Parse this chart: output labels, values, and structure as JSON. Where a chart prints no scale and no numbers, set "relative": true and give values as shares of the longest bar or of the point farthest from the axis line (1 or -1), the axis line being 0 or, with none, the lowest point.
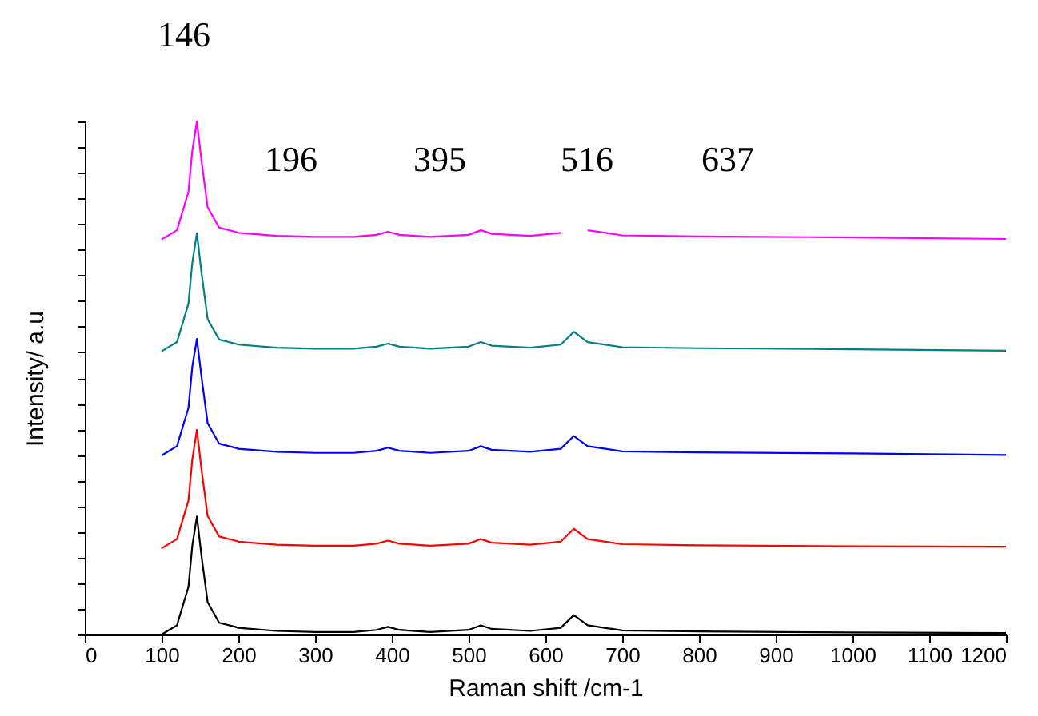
{
  "chart_data": {
    "type": "line",
    "relative": true,
    "xlabel": "Raman shift /cm-1",
    "ylabel": "Intensity/ a.u",
    "xlim": [
      0,
      1200
    ],
    "xticks": [
      0,
      100,
      200,
      300,
      400,
      500,
      600,
      700,
      800,
      900,
      1000,
      1100,
      1200
    ],
    "grid": false,
    "marker": "none",
    "line_style": "solid",
    "annotations": [
      "146",
      "196",
      "395",
      "516",
      "637"
    ],
    "x": [
      100,
      120,
      135,
      140,
      146,
      152,
      160,
      175,
      196,
      200,
      250,
      300,
      350,
      380,
      395,
      410,
      450,
      500,
      516,
      530,
      580,
      620,
      637,
      655,
      700,
      800,
      1000,
      1200
    ],
    "series": [
      {
        "color": "#000000",
        "values": [
          0.0,
          0.018,
          0.093,
          0.173,
          0.23,
          0.153,
          0.063,
          0.023,
          0.015,
          0.013,
          0.007,
          0.005,
          0.005,
          0.009,
          0.015,
          0.009,
          0.005,
          0.009,
          0.018,
          0.011,
          0.007,
          0.013,
          0.038,
          0.018,
          0.008,
          0.006,
          0.004,
          0.003
        ]
      },
      {
        "color": "#ff0000",
        "values": [
          0.168,
          0.186,
          0.261,
          0.341,
          0.399,
          0.321,
          0.231,
          0.191,
          0.183,
          0.181,
          0.175,
          0.173,
          0.173,
          0.177,
          0.183,
          0.177,
          0.173,
          0.177,
          0.186,
          0.179,
          0.175,
          0.181,
          0.206,
          0.186,
          0.176,
          0.174,
          0.172,
          0.171
        ]
      },
      {
        "color": "#0000ff",
        "values": [
          0.349,
          0.367,
          0.442,
          0.522,
          0.576,
          0.502,
          0.412,
          0.372,
          0.364,
          0.362,
          0.356,
          0.354,
          0.354,
          0.358,
          0.364,
          0.358,
          0.354,
          0.358,
          0.367,
          0.36,
          0.356,
          0.362,
          0.387,
          0.367,
          0.357,
          0.355,
          0.353,
          0.35
        ]
      },
      {
        "color": "#008080",
        "values": [
          0.552,
          0.57,
          0.645,
          0.725,
          0.782,
          0.705,
          0.615,
          0.575,
          0.567,
          0.565,
          0.559,
          0.557,
          0.557,
          0.561,
          0.567,
          0.561,
          0.557,
          0.561,
          0.57,
          0.563,
          0.559,
          0.565,
          0.59,
          0.57,
          0.56,
          0.558,
          0.556,
          0.553
        ]
      },
      {
        "color": "#ff00ff",
        "values": [
          0.77,
          0.788,
          0.863,
          0.943,
          1.0,
          0.923,
          0.833,
          0.793,
          0.785,
          0.783,
          0.777,
          0.775,
          0.775,
          0.779,
          0.785,
          0.779,
          0.775,
          0.779,
          0.788,
          0.781,
          0.777,
          0.783,
          null,
          0.788,
          0.778,
          0.776,
          0.774,
          0.771
        ]
      }
    ]
  }
}
